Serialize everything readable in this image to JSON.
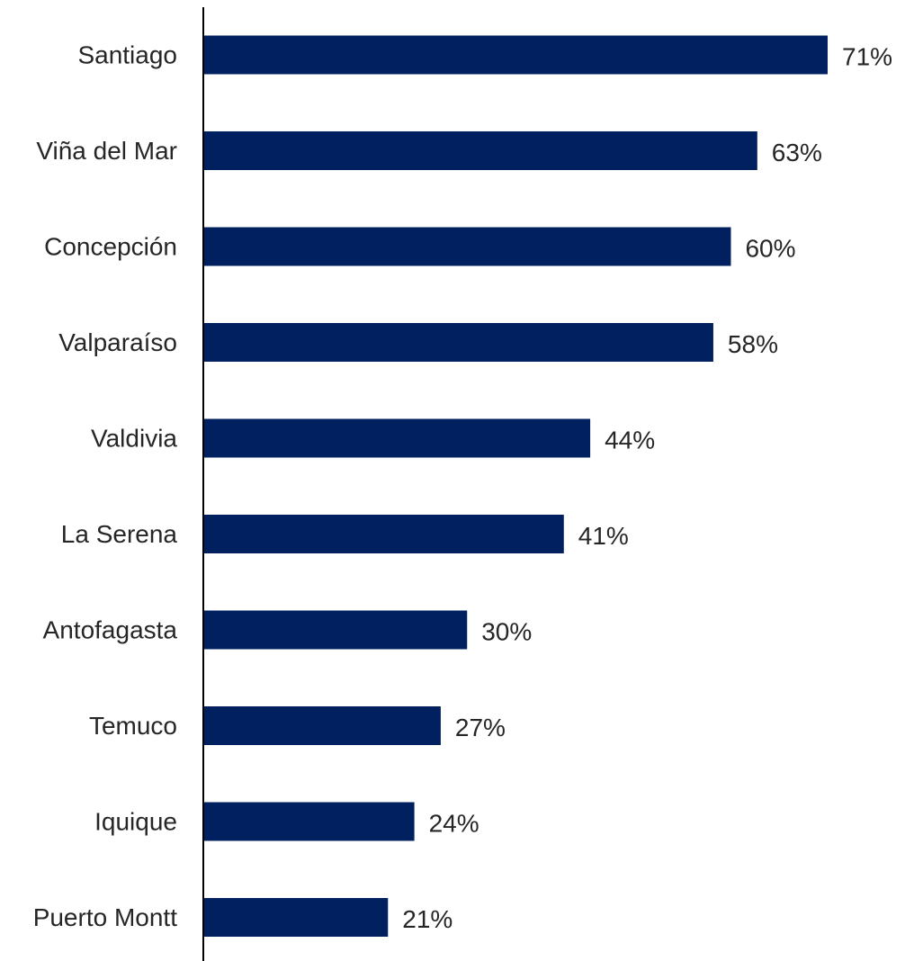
{
  "chart_data": {
    "type": "bar",
    "orientation": "horizontal",
    "categories": [
      "Santiago",
      "Viña del Mar",
      "Concepción",
      "Valparaíso",
      "Valdivia",
      "La Serena",
      "Antofagasta",
      "Temuco",
      "Iquique",
      "Puerto Montt"
    ],
    "values": [
      71,
      63,
      60,
      58,
      44,
      41,
      30,
      27,
      24,
      21
    ],
    "value_labels": [
      "71%",
      "63%",
      "60%",
      "58%",
      "44%",
      "41%",
      "30%",
      "27%",
      "24%",
      "21%"
    ],
    "title": "",
    "xlabel": "",
    "ylabel": "",
    "xlim": [
      0,
      71
    ],
    "grid": false,
    "legend": "none",
    "colors": {
      "bar": "#002060",
      "axis": "#000000",
      "text": "#262626"
    }
  }
}
